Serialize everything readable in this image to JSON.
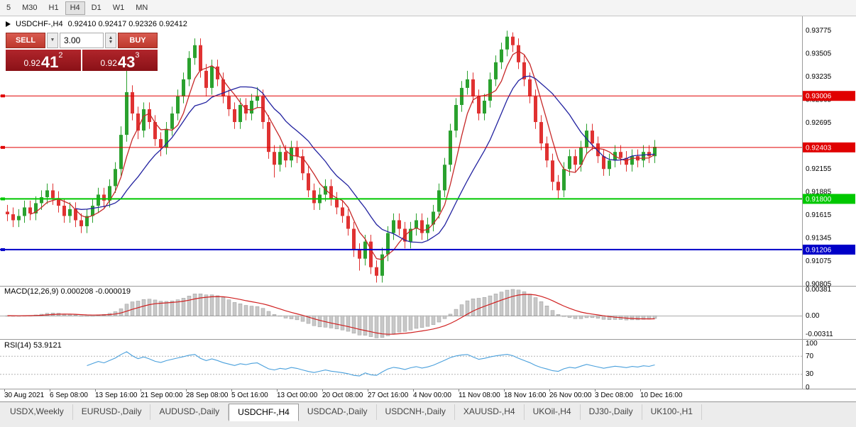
{
  "window": {
    "title": "USDCHF-,H4"
  },
  "toolbar": {
    "timeframes": [
      "5",
      "M30",
      "H1",
      "H4",
      "D1",
      "W1",
      "MN"
    ],
    "active": "H4"
  },
  "symbol_info": {
    "symbol": "USDCHF-,H4",
    "ohlc": "0.92410 0.92417 0.92326 0.92412"
  },
  "trade_widget": {
    "sell_label": "SELL",
    "buy_label": "BUY",
    "volume": "3.00",
    "sell_price": {
      "base": "0.92",
      "big": "41",
      "sup": "2"
    },
    "buy_price": {
      "base": "0.92",
      "big": "43",
      "sup": "3"
    }
  },
  "indicators": {
    "macd": {
      "label": "MACD(12,26,9) 0.000208 -0.000019",
      "axis_labels": [
        "0.00381",
        "0.00",
        "-0.00311"
      ]
    },
    "rsi": {
      "label": "RSI(14) 53.9121",
      "axis_labels": [
        "100",
        "70",
        "30",
        "0"
      ],
      "levels": [
        70,
        30
      ]
    }
  },
  "tabs": {
    "active": "USDCHF-,H4",
    "items": [
      "USDX,Weekly",
      "EURUSD-,Daily",
      "AUDUSD-,Daily",
      "USDCHF-,H4",
      "USDCAD-,Daily",
      "USDCNH-,Daily",
      "XAUUSD-,H4",
      "UKOil-,H4",
      "DJ30-,Daily",
      "UK100-,H1"
    ]
  },
  "chart_data": {
    "type": "candlestick",
    "symbol": "USDCHF-",
    "timeframe": "H4",
    "y_range": [
      0.9079,
      0.9388
    ],
    "bull_color": "#2aa12e",
    "bear_color": "#e03232",
    "price_axis_labels": [
      "0.93775",
      "0.93505",
      "0.93235",
      "0.92965",
      "0.92695",
      "0.92425",
      "0.92155",
      "0.91885",
      "0.91615",
      "0.91345",
      "0.91075",
      "0.90805"
    ],
    "levels": [
      {
        "value": 0.93006,
        "label": "0.93006",
        "color": "#e00000",
        "width": 1
      },
      {
        "value": 0.92403,
        "label": "0.92403",
        "color": "#e00000",
        "width": 1
      },
      {
        "value": 0.918,
        "label": "0.91800",
        "color": "#00c800",
        "width": 2
      },
      {
        "value": 0.91206,
        "label": "0.91206",
        "color": "#0000c8",
        "width": 2
      }
    ],
    "x_labels": [
      "30 Aug 2021",
      "6 Sep 08:00",
      "13 Sep 16:00",
      "21 Sep 00:00",
      "28 Sep 08:00",
      "5 Oct 16:00",
      "13 Oct 00:00",
      "20 Oct 08:00",
      "27 Oct 16:00",
      "4 Nov 00:00",
      "11 Nov 08:00",
      "18 Nov 16:00",
      "26 Nov 00:00",
      "3 Dec 08:00",
      "10 Dec 16:00"
    ],
    "moving_averages": [
      {
        "period": 5,
        "color": "#c62828"
      },
      {
        "period": 13,
        "color": "#2222a0"
      }
    ],
    "macd_params": [
      12,
      26,
      9
    ],
    "rsi_period": 14,
    "candles": [
      [
        0.9165,
        0.9173,
        0.9154,
        0.9162
      ],
      [
        0.9162,
        0.917,
        0.9147,
        0.9155
      ],
      [
        0.9155,
        0.9168,
        0.9147,
        0.916
      ],
      [
        0.916,
        0.9178,
        0.9152,
        0.917
      ],
      [
        0.917,
        0.9178,
        0.9155,
        0.9163
      ],
      [
        0.9163,
        0.9183,
        0.9155,
        0.9175
      ],
      [
        0.9175,
        0.919,
        0.9167,
        0.9182
      ],
      [
        0.9182,
        0.9198,
        0.9174,
        0.919
      ],
      [
        0.919,
        0.9198,
        0.9173,
        0.9181
      ],
      [
        0.9181,
        0.9189,
        0.9164,
        0.9172
      ],
      [
        0.9172,
        0.918,
        0.9152,
        0.916
      ],
      [
        0.916,
        0.9176,
        0.9152,
        0.9168
      ],
      [
        0.9168,
        0.9176,
        0.9147,
        0.9155
      ],
      [
        0.9155,
        0.9163,
        0.914,
        0.9148
      ],
      [
        0.9148,
        0.9168,
        0.914,
        0.916
      ],
      [
        0.916,
        0.918,
        0.9152,
        0.9172
      ],
      [
        0.9172,
        0.9193,
        0.9164,
        0.9185
      ],
      [
        0.9185,
        0.9193,
        0.917,
        0.9178
      ],
      [
        0.9178,
        0.9203,
        0.917,
        0.9195
      ],
      [
        0.9195,
        0.9223,
        0.9187,
        0.9215
      ],
      [
        0.9215,
        0.9265,
        0.9207,
        0.9255
      ],
      [
        0.9255,
        0.9332,
        0.9247,
        0.9305
      ],
      [
        0.9305,
        0.9313,
        0.9272,
        0.928
      ],
      [
        0.928,
        0.9288,
        0.925,
        0.926
      ],
      [
        0.926,
        0.9293,
        0.9252,
        0.9285
      ],
      [
        0.9285,
        0.9293,
        0.9262,
        0.927
      ],
      [
        0.927,
        0.9278,
        0.9242,
        0.925
      ],
      [
        0.925,
        0.9258,
        0.923,
        0.924
      ],
      [
        0.924,
        0.927,
        0.9232,
        0.9262
      ],
      [
        0.9262,
        0.9288,
        0.9254,
        0.928
      ],
      [
        0.928,
        0.9308,
        0.9272,
        0.93
      ],
      [
        0.93,
        0.9328,
        0.9292,
        0.932
      ],
      [
        0.932,
        0.9353,
        0.9312,
        0.9345
      ],
      [
        0.9345,
        0.9368,
        0.9337,
        0.936
      ],
      [
        0.936,
        0.9368,
        0.9322,
        0.933
      ],
      [
        0.933,
        0.9338,
        0.93,
        0.931
      ],
      [
        0.931,
        0.9343,
        0.9302,
        0.9335
      ],
      [
        0.9335,
        0.9343,
        0.9312,
        0.932
      ],
      [
        0.932,
        0.9328,
        0.9292,
        0.93
      ],
      [
        0.93,
        0.9308,
        0.9277,
        0.9285
      ],
      [
        0.9285,
        0.9293,
        0.9262,
        0.927
      ],
      [
        0.927,
        0.9298,
        0.9262,
        0.929
      ],
      [
        0.929,
        0.9298,
        0.9272,
        0.928
      ],
      [
        0.928,
        0.9303,
        0.9272,
        0.9295
      ],
      [
        0.9295,
        0.9311,
        0.9287,
        0.93
      ],
      [
        0.93,
        0.9308,
        0.9262,
        0.927
      ],
      [
        0.927,
        0.9278,
        0.9227,
        0.9235
      ],
      [
        0.9235,
        0.9243,
        0.9205,
        0.922
      ],
      [
        0.922,
        0.9243,
        0.9212,
        0.9235
      ],
      [
        0.9235,
        0.9243,
        0.9217,
        0.9225
      ],
      [
        0.9225,
        0.9248,
        0.9217,
        0.924
      ],
      [
        0.924,
        0.9248,
        0.9222,
        0.923
      ],
      [
        0.923,
        0.9238,
        0.9202,
        0.921
      ],
      [
        0.921,
        0.9218,
        0.9182,
        0.919
      ],
      [
        0.919,
        0.9198,
        0.9167,
        0.9175
      ],
      [
        0.9175,
        0.9193,
        0.9167,
        0.9185
      ],
      [
        0.9185,
        0.9203,
        0.9177,
        0.9195
      ],
      [
        0.9195,
        0.9203,
        0.9172,
        0.918
      ],
      [
        0.918,
        0.9188,
        0.9162,
        0.917
      ],
      [
        0.917,
        0.9178,
        0.9152,
        0.916
      ],
      [
        0.916,
        0.9168,
        0.9137,
        0.9145
      ],
      [
        0.9145,
        0.9153,
        0.9112,
        0.912
      ],
      [
        0.912,
        0.9128,
        0.9096,
        0.911
      ],
      [
        0.911,
        0.9138,
        0.9102,
        0.913
      ],
      [
        0.913,
        0.9138,
        0.9092,
        0.91
      ],
      [
        0.91,
        0.9108,
        0.9082,
        0.909
      ],
      [
        0.909,
        0.9123,
        0.9082,
        0.9115
      ],
      [
        0.9115,
        0.9148,
        0.9107,
        0.914
      ],
      [
        0.914,
        0.9163,
        0.9132,
        0.9155
      ],
      [
        0.9155,
        0.9163,
        0.9137,
        0.9145
      ],
      [
        0.9145,
        0.9153,
        0.9122,
        0.913
      ],
      [
        0.913,
        0.9153,
        0.9122,
        0.9145
      ],
      [
        0.9145,
        0.9163,
        0.9137,
        0.9155
      ],
      [
        0.9155,
        0.9163,
        0.9132,
        0.914
      ],
      [
        0.914,
        0.9158,
        0.9132,
        0.915
      ],
      [
        0.915,
        0.9173,
        0.9142,
        0.9165
      ],
      [
        0.9165,
        0.9198,
        0.9157,
        0.919
      ],
      [
        0.919,
        0.9228,
        0.9182,
        0.922
      ],
      [
        0.922,
        0.9268,
        0.9212,
        0.926
      ],
      [
        0.926,
        0.9298,
        0.9252,
        0.929
      ],
      [
        0.929,
        0.9318,
        0.9282,
        0.931
      ],
      [
        0.931,
        0.933,
        0.9302,
        0.932
      ],
      [
        0.932,
        0.9328,
        0.9292,
        0.93
      ],
      [
        0.93,
        0.9308,
        0.9272,
        0.928
      ],
      [
        0.928,
        0.9303,
        0.9272,
        0.9295
      ],
      [
        0.9295,
        0.9328,
        0.9287,
        0.932
      ],
      [
        0.932,
        0.9348,
        0.9312,
        0.934
      ],
      [
        0.934,
        0.9363,
        0.9332,
        0.9355
      ],
      [
        0.9355,
        0.9377,
        0.9347,
        0.937
      ],
      [
        0.937,
        0.9375,
        0.9352,
        0.936
      ],
      [
        0.936,
        0.9368,
        0.9332,
        0.934
      ],
      [
        0.934,
        0.9348,
        0.9312,
        0.932
      ],
      [
        0.932,
        0.9328,
        0.9292,
        0.93
      ],
      [
        0.93,
        0.9308,
        0.9262,
        0.927
      ],
      [
        0.927,
        0.9278,
        0.9237,
        0.9245
      ],
      [
        0.9245,
        0.9253,
        0.9217,
        0.9225
      ],
      [
        0.9225,
        0.9233,
        0.919,
        0.92
      ],
      [
        0.92,
        0.9208,
        0.918,
        0.919
      ],
      [
        0.919,
        0.9223,
        0.9182,
        0.9215
      ],
      [
        0.9215,
        0.9238,
        0.9207,
        0.923
      ],
      [
        0.923,
        0.9238,
        0.9212,
        0.922
      ],
      [
        0.922,
        0.9248,
        0.9212,
        0.924
      ],
      [
        0.924,
        0.9268,
        0.9232,
        0.926
      ],
      [
        0.926,
        0.9268,
        0.9237,
        0.9245
      ],
      [
        0.9245,
        0.9253,
        0.9222,
        0.923
      ],
      [
        0.923,
        0.9238,
        0.9207,
        0.9215
      ],
      [
        0.9215,
        0.9233,
        0.9207,
        0.9225
      ],
      [
        0.9225,
        0.9243,
        0.9217,
        0.9235
      ],
      [
        0.9235,
        0.9243,
        0.922,
        0.9228
      ],
      [
        0.9228,
        0.9236,
        0.9212,
        0.922
      ],
      [
        0.922,
        0.9238,
        0.9212,
        0.923
      ],
      [
        0.923,
        0.9238,
        0.9217,
        0.9225
      ],
      [
        0.9225,
        0.9243,
        0.9217,
        0.9235
      ],
      [
        0.9235,
        0.9243,
        0.9222,
        0.923
      ],
      [
        0.923,
        0.9249,
        0.9222,
        0.9241
      ]
    ]
  }
}
